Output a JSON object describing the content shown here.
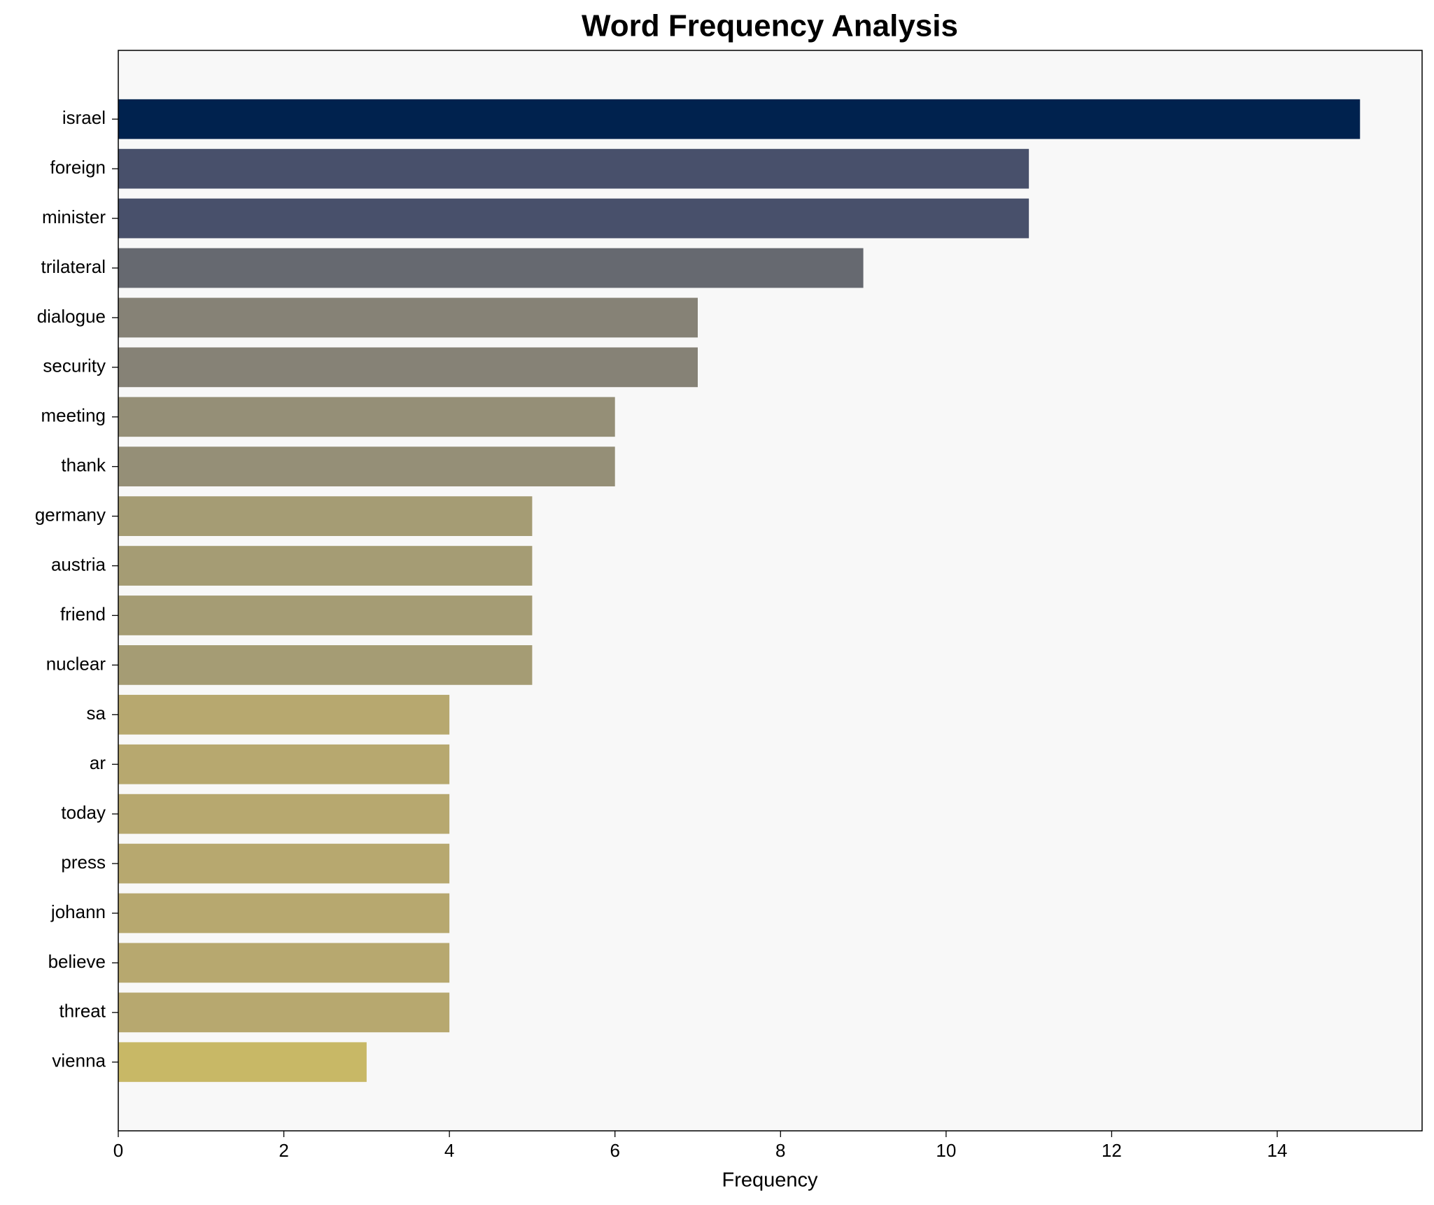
{
  "chart_data": {
    "type": "barh",
    "title": "Word Frequency Analysis",
    "xlabel": "Frequency",
    "categories": [
      "israel",
      "foreign",
      "minister",
      "trilateral",
      "dialogue",
      "security",
      "meeting",
      "thank",
      "germany",
      "austria",
      "friend",
      "nuclear",
      "sa",
      "ar",
      "today",
      "press",
      "johann",
      "believe",
      "threat",
      "vienna"
    ],
    "values": [
      15,
      11,
      11,
      9,
      7,
      7,
      6,
      6,
      5,
      5,
      5,
      5,
      4,
      4,
      4,
      4,
      4,
      4,
      4,
      3
    ],
    "colors": [
      "#00224e",
      "#48506b",
      "#48506b",
      "#666970",
      "#868276",
      "#868276",
      "#958f77",
      "#958f77",
      "#a59c74",
      "#a59c74",
      "#a59c74",
      "#a59c74",
      "#b7a86f",
      "#b7a86f",
      "#b7a86f",
      "#b7a86f",
      "#b7a86f",
      "#b7a86f",
      "#b7a86f",
      "#c8b866"
    ],
    "xlim": [
      0,
      15.75
    ],
    "xticks": [
      0,
      2,
      4,
      6,
      8,
      10,
      12,
      14
    ],
    "grid": false,
    "background": "#f8f8f8"
  }
}
